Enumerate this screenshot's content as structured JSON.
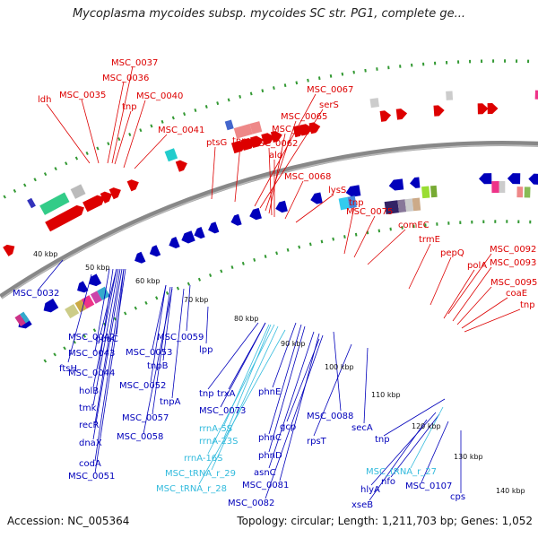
{
  "title": "Mycoplasma mycoides subsp. mycoides SC str. PG1, complete ge...",
  "accession": "Accession: NC_005364",
  "summary": "Topology: circular; Length: 1,211,703 bp; Genes: 1,052",
  "colors": {
    "forward": "#dd0000",
    "reverse": "#0000bb",
    "rna": "#33bbdd",
    "backbone": "#888888",
    "ticks": "#339933"
  },
  "kbp_ticks": [
    {
      "id": "t40",
      "label": "40 kbp"
    },
    {
      "id": "t50",
      "label": "50 kbp"
    },
    {
      "id": "t60",
      "label": "60 kbp"
    },
    {
      "id": "t70",
      "label": "70 kbp"
    },
    {
      "id": "t80",
      "label": "80 kbp"
    },
    {
      "id": "t90",
      "label": "90 kbp"
    },
    {
      "id": "t100",
      "label": "100 kbp"
    },
    {
      "id": "t110",
      "label": "110 kbp"
    },
    {
      "id": "t120",
      "label": "120 kbp"
    },
    {
      "id": "t130",
      "label": "130 kbp"
    },
    {
      "id": "t140",
      "label": "140 kbp"
    }
  ],
  "forward_labels": [
    {
      "id": "f1",
      "text": "MSC_0037"
    },
    {
      "id": "f2",
      "text": "MSC_0036"
    },
    {
      "id": "f3",
      "text": "ldh"
    },
    {
      "id": "f4",
      "text": "MSC_0035"
    },
    {
      "id": "f5",
      "text": "MSC_0040"
    },
    {
      "id": "f6",
      "text": "tnp"
    },
    {
      "id": "f7",
      "text": "MSC_0041"
    },
    {
      "id": "f8",
      "text": "ptsG"
    },
    {
      "id": "f9",
      "text": "tnp"
    },
    {
      "id": "f10",
      "text": "MSC_0067"
    },
    {
      "id": "f11",
      "text": "serS"
    },
    {
      "id": "f12",
      "text": "MSC_0065"
    },
    {
      "id": "f13",
      "text": "MSC_0063"
    },
    {
      "id": "f14",
      "text": "MSC_0062"
    },
    {
      "id": "f15",
      "text": "ald"
    },
    {
      "id": "f16",
      "text": "MSC_0068"
    },
    {
      "id": "f17",
      "text": "lysS"
    },
    {
      "id": "f18",
      "text": "tnp"
    },
    {
      "id": "f19",
      "text": "MSC_0075"
    },
    {
      "id": "f20",
      "text": "comEC"
    },
    {
      "id": "f21",
      "text": "trmE"
    },
    {
      "id": "f22",
      "text": "pepQ"
    },
    {
      "id": "f23",
      "text": "MSC_0092"
    },
    {
      "id": "f24",
      "text": "polA"
    },
    {
      "id": "f25",
      "text": "MSC_0093"
    },
    {
      "id": "f26",
      "text": "MSC_0095"
    },
    {
      "id": "f27",
      "text": "coaE"
    },
    {
      "id": "f28",
      "text": "tnp"
    }
  ],
  "reverse_labels": [
    {
      "id": "r1",
      "text": "MSC_0032"
    },
    {
      "id": "r2",
      "text": "ftsH"
    },
    {
      "id": "r3",
      "text": "MSC_0042"
    },
    {
      "id": "r4",
      "text": "guaC"
    },
    {
      "id": "r5",
      "text": "MSC_0059"
    },
    {
      "id": "r6",
      "text": "MSC_0043"
    },
    {
      "id": "r7",
      "text": "MSC_0053"
    },
    {
      "id": "r8",
      "text": "lpp"
    },
    {
      "id": "r9",
      "text": "MSC_0044"
    },
    {
      "id": "r10",
      "text": "tnpB"
    },
    {
      "id": "r11",
      "text": "holB"
    },
    {
      "id": "r12",
      "text": "MSC_0052"
    },
    {
      "id": "r13",
      "text": "tnp"
    },
    {
      "id": "r14",
      "text": "trxA"
    },
    {
      "id": "r15",
      "text": "tnpA"
    },
    {
      "id": "r16",
      "text": "tmk"
    },
    {
      "id": "r17",
      "text": "MSC_0073"
    },
    {
      "id": "r18",
      "text": "recR"
    },
    {
      "id": "r19",
      "text": "MSC_0057"
    },
    {
      "id": "r20",
      "text": "phnE"
    },
    {
      "id": "r21",
      "text": "MSC_0088"
    },
    {
      "id": "r22",
      "text": "MSC_0058"
    },
    {
      "id": "r23",
      "text": "gcp"
    },
    {
      "id": "r24",
      "text": "secA"
    },
    {
      "id": "r25",
      "text": "dnaX"
    },
    {
      "id": "r26",
      "text": "phnC"
    },
    {
      "id": "r27",
      "text": "rpsT"
    },
    {
      "id": "r28",
      "text": "tnp"
    },
    {
      "id": "r29",
      "text": "codA"
    },
    {
      "id": "r30",
      "text": "phnD"
    },
    {
      "id": "r31",
      "text": "MSC_0051"
    },
    {
      "id": "r32",
      "text": "asnC"
    },
    {
      "id": "r33",
      "text": "hlyA"
    },
    {
      "id": "r34",
      "text": "nfo"
    },
    {
      "id": "r35",
      "text": "MSC_0107"
    },
    {
      "id": "r36",
      "text": "MSC_0081"
    },
    {
      "id": "r37",
      "text": "cps"
    },
    {
      "id": "r38",
      "text": "MSC_0082"
    },
    {
      "id": "r39",
      "text": "xseB"
    }
  ],
  "rna_labels": [
    {
      "id": "n1",
      "text": "rrnA-5S"
    },
    {
      "id": "n2",
      "text": "rrnA-23S"
    },
    {
      "id": "n3",
      "text": "rrnA-16S"
    },
    {
      "id": "n4",
      "text": "MSC_tRNA_r_29"
    },
    {
      "id": "n5",
      "text": "MSC_tRNA_r_28"
    },
    {
      "id": "n6",
      "text": "MSC_tRNA_r_27"
    }
  ]
}
